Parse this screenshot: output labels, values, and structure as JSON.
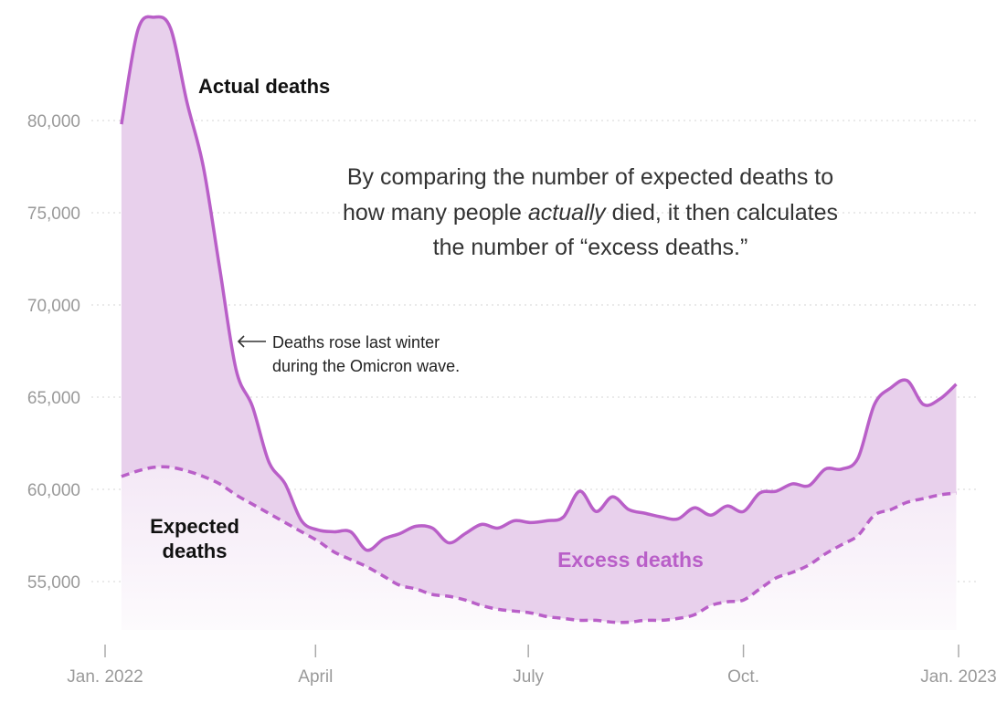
{
  "chart_data": {
    "type": "area",
    "ylim": [
      52000,
      86000
    ],
    "y_ticks": [
      {
        "value": 55000,
        "label": "55,000"
      },
      {
        "value": 60000,
        "label": "60,000"
      },
      {
        "value": 65000,
        "label": "65,000"
      },
      {
        "value": 70000,
        "label": "70,000"
      },
      {
        "value": 75000,
        "label": "75,000"
      },
      {
        "value": 80000,
        "label": "80,000"
      }
    ],
    "x_ticks": [
      {
        "date": "2022-01-01",
        "label": "Jan. 2022"
      },
      {
        "date": "2022-04-01",
        "label": "April"
      },
      {
        "date": "2022-07-01",
        "label": "July"
      },
      {
        "date": "2022-10-01",
        "label": "Oct."
      },
      {
        "date": "2023-01-01",
        "label": "Jan. 2023"
      }
    ],
    "grid": "horizontal dotted",
    "x": [
      "2022-01-08",
      "2022-01-15",
      "2022-01-22",
      "2022-01-29",
      "2022-02-05",
      "2022-02-12",
      "2022-02-19",
      "2022-02-26",
      "2022-03-05",
      "2022-03-12",
      "2022-03-19",
      "2022-03-26",
      "2022-04-02",
      "2022-04-09",
      "2022-04-16",
      "2022-04-23",
      "2022-04-30",
      "2022-05-07",
      "2022-05-14",
      "2022-05-21",
      "2022-05-28",
      "2022-06-04",
      "2022-06-11",
      "2022-06-18",
      "2022-06-25",
      "2022-07-02",
      "2022-07-09",
      "2022-07-16",
      "2022-07-23",
      "2022-07-30",
      "2022-08-06",
      "2022-08-13",
      "2022-08-20",
      "2022-08-27",
      "2022-09-03",
      "2022-09-10",
      "2022-09-17",
      "2022-09-24",
      "2022-10-01",
      "2022-10-08",
      "2022-10-15",
      "2022-10-22",
      "2022-10-29",
      "2022-11-05",
      "2022-11-12",
      "2022-11-19",
      "2022-11-26",
      "2022-12-03",
      "2022-12-10",
      "2022-12-17",
      "2022-12-24",
      "2022-12-31"
    ],
    "series": [
      {
        "name": "Actual deaths",
        "style": "solid",
        "values": [
          79800,
          84900,
          85600,
          85000,
          81000,
          77500,
          72000,
          66500,
          64500,
          61500,
          60300,
          58300,
          57800,
          57700,
          57700,
          56700,
          57300,
          57600,
          58000,
          57900,
          57100,
          57600,
          58100,
          57900,
          58300,
          58200,
          58300,
          58500,
          59900,
          58800,
          59600,
          58900,
          58700,
          58500,
          58400,
          59000,
          58600,
          59100,
          58800,
          59800,
          59900,
          60300,
          60200,
          61100,
          61100,
          61700,
          64600,
          65500,
          65900,
          64600,
          64900,
          65700
        ]
      },
      {
        "name": "Expected deaths",
        "style": "dashed",
        "values": [
          60700,
          61000,
          61200,
          61200,
          61000,
          60700,
          60300,
          59700,
          59200,
          58700,
          58200,
          57700,
          57200,
          56600,
          56200,
          55800,
          55300,
          54800,
          54600,
          54300,
          54200,
          54000,
          53700,
          53500,
          53400,
          53300,
          53100,
          53000,
          52900,
          52900,
          52800,
          52800,
          52900,
          52900,
          53000,
          53200,
          53700,
          53900,
          54000,
          54600,
          55200,
          55500,
          55900,
          56500,
          57000,
          57500,
          58600,
          58900,
          59300,
          59500,
          59700,
          59800
        ]
      }
    ],
    "labels": {
      "actual": "Actual deaths",
      "expected_line1": "Expected",
      "expected_line2": "deaths",
      "excess": "Excess deaths"
    },
    "annotations": {
      "omicron_line1": "Deaths rose last winter",
      "omicron_line2": "during the Omicron wave.",
      "center_line1": "By comparing the number of expected deaths to",
      "center_line2_a": "how many people ",
      "center_line2_em": "actually",
      "center_line2_b": " died, it then calculates",
      "center_line3": "the number of “excess deaths.”"
    },
    "colors": {
      "line": "#b95fc8",
      "excess_fill": "#e8d0ec",
      "expected_fill": "#f6ecf8",
      "tick_text": "#9a9a9a",
      "grid": "#dddddd"
    }
  }
}
